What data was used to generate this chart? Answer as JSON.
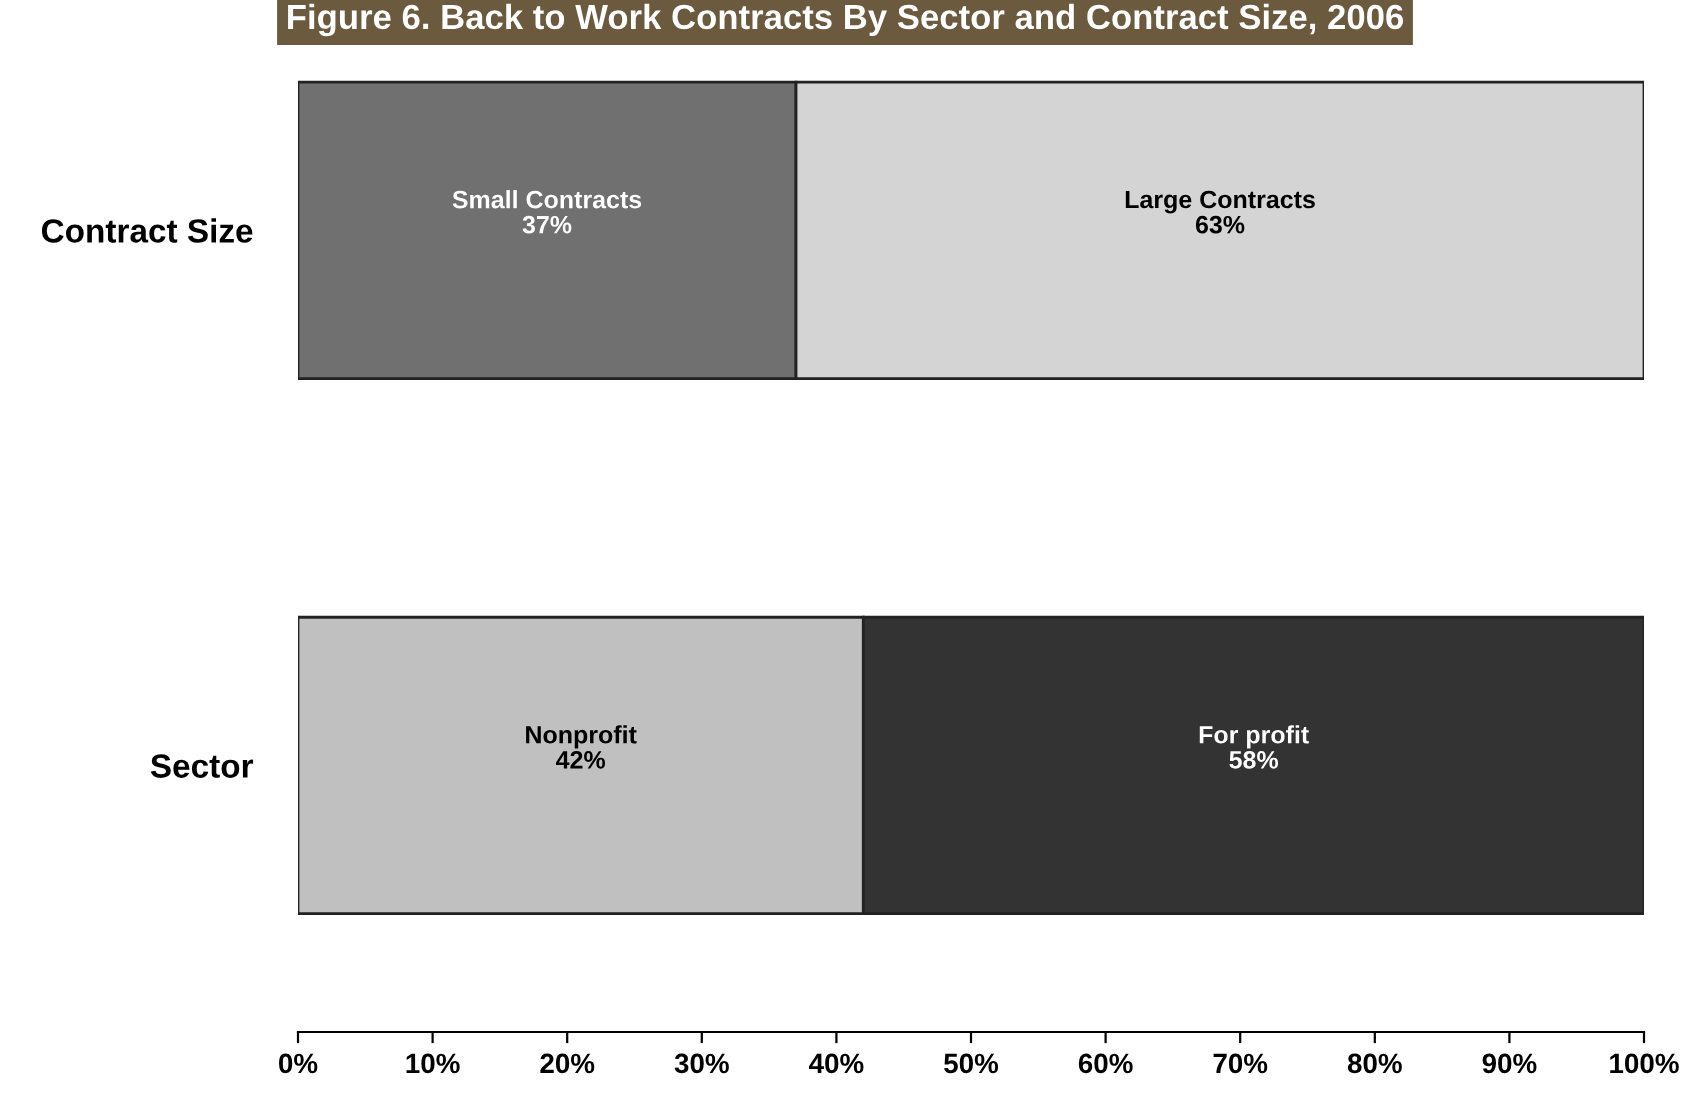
{
  "chart_data": {
    "type": "bar",
    "orientation": "horizontal",
    "stacked": true,
    "title": "Figure 6. Back to Work Contracts By Sector and Contract Size, 2006",
    "categories": [
      "Contract Size",
      "Sector"
    ],
    "series": [
      {
        "name": "Small Contracts",
        "color": "#707070",
        "values": [
          37,
          null
        ],
        "value_labels": [
          "37%",
          null
        ]
      },
      {
        "name": "Large Contracts",
        "color": "#d4d4d4",
        "values": [
          63,
          null
        ],
        "value_labels": [
          "63%",
          null
        ]
      },
      {
        "name": "Nonprofit",
        "color": "#c0c0c0",
        "values": [
          null,
          42
        ],
        "value_labels": [
          null,
          "42%"
        ]
      },
      {
        "name": "For profit",
        "color": "#333333",
        "values": [
          null,
          58
        ],
        "value_labels": [
          null,
          "58%"
        ]
      }
    ],
    "xlim": [
      0,
      100
    ],
    "xticks": [
      {
        "value": 0,
        "label": "0%"
      },
      {
        "value": 10,
        "label": "10%"
      },
      {
        "value": 20,
        "label": "20%"
      },
      {
        "value": 30,
        "label": "30%"
      },
      {
        "value": 40,
        "label": "40%"
      },
      {
        "value": 50,
        "label": "50%"
      },
      {
        "value": 60,
        "label": "60%"
      },
      {
        "value": 70,
        "label": "70%"
      },
      {
        "value": 80,
        "label": "80%"
      },
      {
        "value": 90,
        "label": "90%"
      },
      {
        "value": 100,
        "label": "100%"
      }
    ],
    "grid": false,
    "legend": false
  }
}
